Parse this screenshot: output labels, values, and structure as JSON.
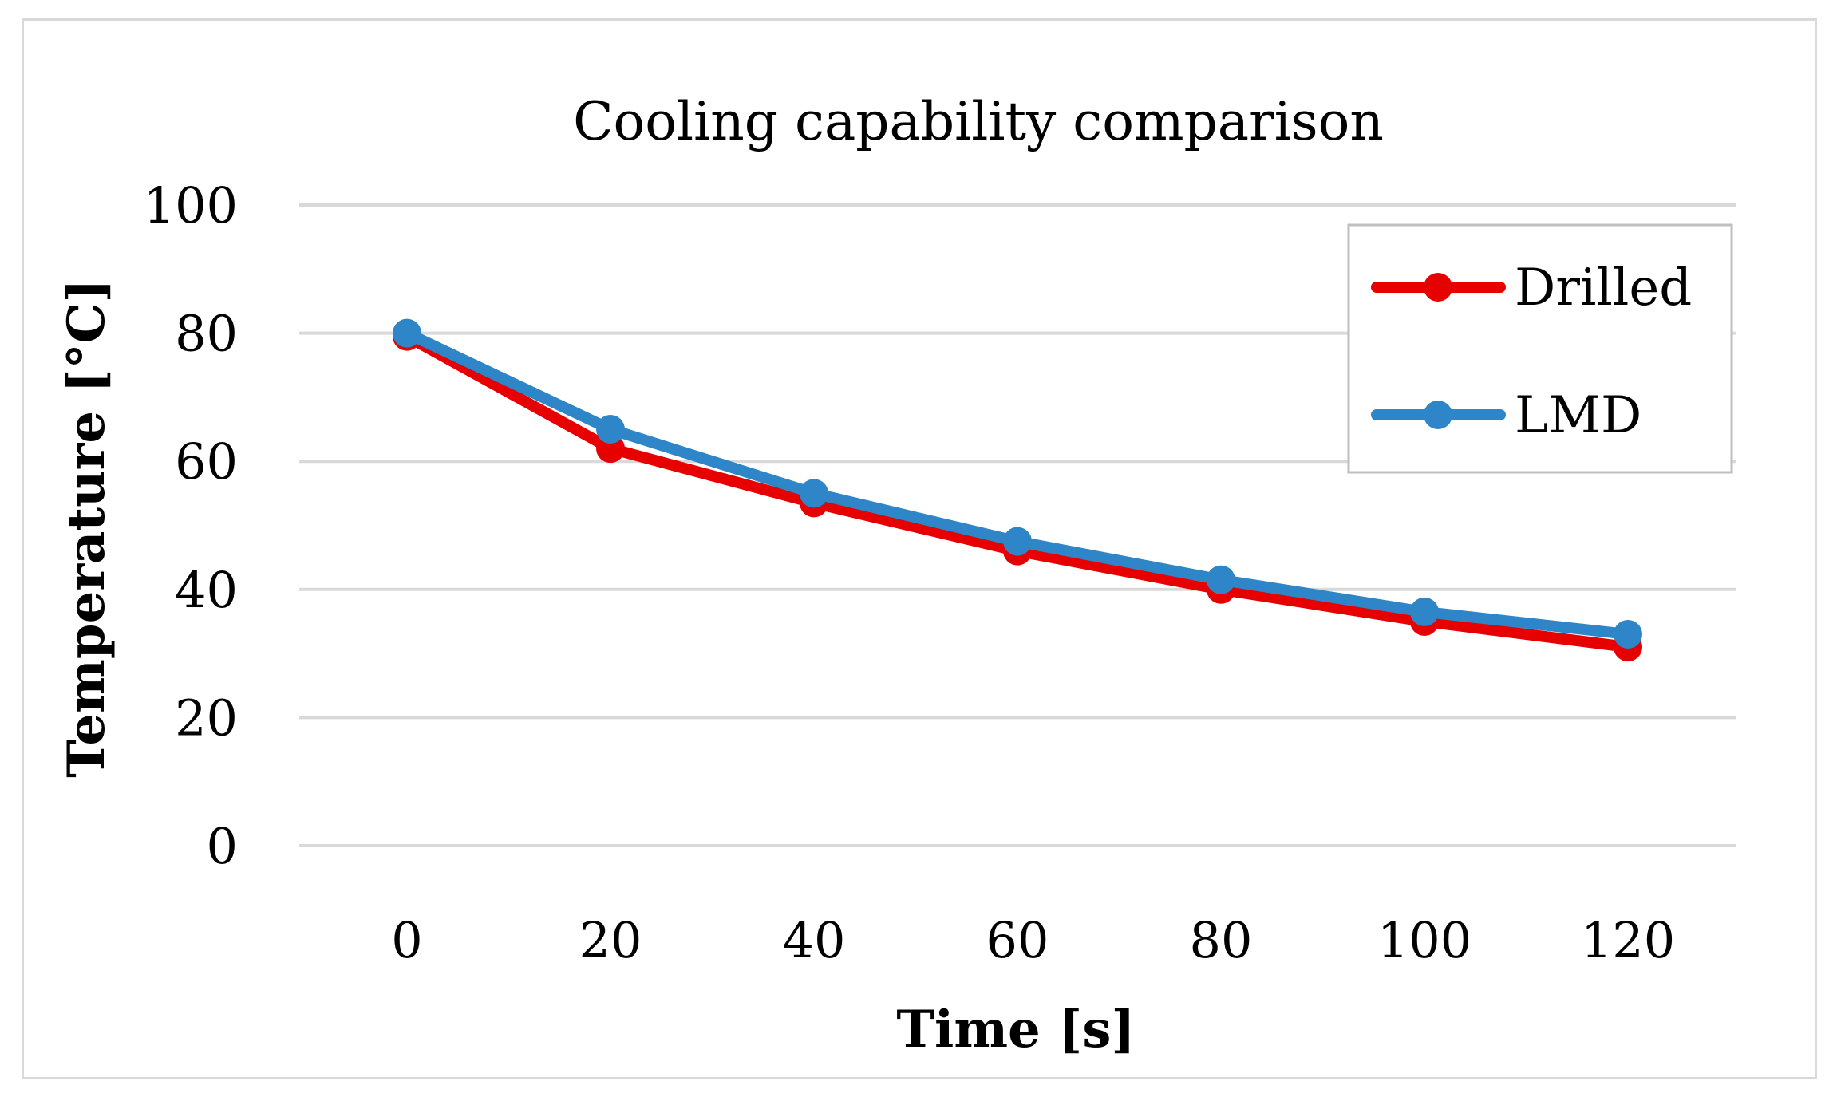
{
  "chart_data": {
    "type": "line",
    "title": "Cooling capability comparison",
    "xlabel": "Time [s]",
    "ylabel": "Temperature [°C]",
    "x": [
      0,
      20,
      40,
      60,
      80,
      100,
      120
    ],
    "x_tick_labels": [
      "0",
      "20",
      "40",
      "60",
      "80",
      "100",
      "120"
    ],
    "y_tick_values": [
      0,
      20,
      40,
      60,
      80,
      100
    ],
    "y_tick_labels": [
      "0",
      "20",
      "40",
      "60",
      "80",
      "100"
    ],
    "ylim": [
      0,
      100
    ],
    "grid": "horizontal",
    "legend_position": "top-right",
    "series": [
      {
        "name": "Drilled",
        "color": "#e60000",
        "values": [
          79.5,
          62,
          53.5,
          46,
          40,
          35,
          31
        ]
      },
      {
        "name": "LMD",
        "color": "#2e86c8",
        "values": [
          80,
          65,
          55,
          47.5,
          41.5,
          36.5,
          33
        ]
      }
    ]
  }
}
